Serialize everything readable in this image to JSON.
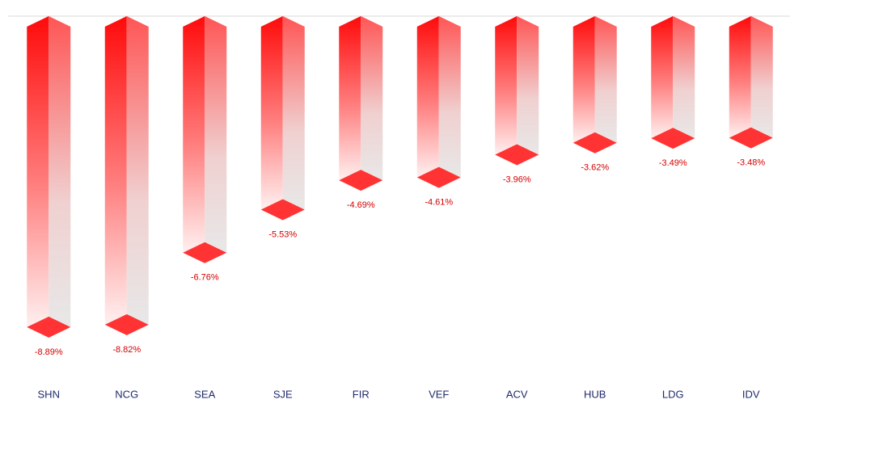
{
  "chart_data": {
    "type": "bar",
    "categories": [
      "SHN",
      "NCG",
      "SEA",
      "SJE",
      "FIR",
      "VEF",
      "ACV",
      "HUB",
      "LDG",
      "IDV"
    ],
    "values": [
      -8.89,
      -8.82,
      -6.76,
      -5.53,
      -4.69,
      -4.61,
      -3.96,
      -3.62,
      -3.49,
      -3.48
    ],
    "value_labels": [
      "-8.89%",
      "-8.82%",
      "-6.76%",
      "-5.53%",
      "-4.69%",
      "-4.61%",
      "-3.96%",
      "-3.62%",
      "-3.49%",
      "-3.48%"
    ],
    "color": "#ff0000",
    "ylim": [
      -10,
      0
    ]
  }
}
